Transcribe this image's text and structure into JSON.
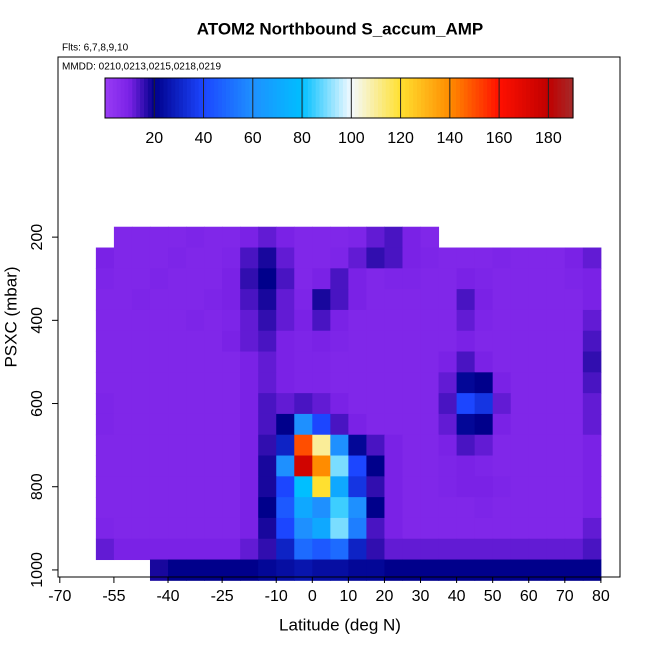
{
  "chart_data": {
    "type": "heatmap",
    "title": "ATOM2 Northbound S_accum_AMP",
    "subtitle": "Flts: 6,7,8,9,10",
    "annotation": "MMDD: 0210,0213,0215,0218,0219",
    "xlabel": "Latitude (deg N)",
    "ylabel": "PSXC (mbar)",
    "xlim": [
      -70.5,
      85.3
    ],
    "xticks": [
      -70,
      -55,
      -40,
      -25,
      -10,
      0,
      10,
      20,
      30,
      40,
      50,
      60,
      70,
      80
    ],
    "ylim": [
      1017,
      -233
    ],
    "yticks": [
      200,
      400,
      600,
      800,
      1000
    ],
    "zlim": [
      0,
      190
    ],
    "zticks": [
      20,
      40,
      60,
      80,
      100,
      120,
      140,
      160,
      180
    ],
    "color_stops": [
      0,
      10,
      20,
      40,
      60,
      80,
      100,
      120,
      140,
      160,
      180,
      190
    ],
    "colors": [
      "#9a3cf5",
      "#7a22e6",
      "#00008b",
      "#1c46ff",
      "#1e90ff",
      "#00bfff",
      "#f4faff",
      "#ffe030",
      "#ff8c00",
      "#ff1000",
      "#c00000",
      "#a52a2a"
    ],
    "x": [
      -57.5,
      -52.5,
      -47.5,
      -42.5,
      -37.5,
      -32.5,
      -27.5,
      -22.5,
      -17.5,
      -12.5,
      -7.5,
      -2.5,
      2.5,
      7.5,
      12.5,
      17.5,
      22.5,
      27.5,
      32.5,
      37.5,
      42.5,
      47.5,
      52.5,
      57.5,
      62.5,
      67.5,
      72.5,
      77.5
    ],
    "y": [
      200,
      250,
      300,
      350,
      400,
      450,
      500,
      550,
      600,
      650,
      700,
      750,
      800,
      850,
      900,
      950,
      1000
    ],
    "z": [
      [
        null,
        8,
        8,
        8,
        8,
        9,
        8,
        8,
        10,
        12,
        10,
        8,
        8,
        8,
        9,
        12,
        14,
        10,
        8,
        null,
        null,
        null,
        null,
        null,
        null,
        null,
        null,
        null
      ],
      [
        10,
        8,
        8,
        8,
        9,
        8,
        8,
        9,
        14,
        18,
        12,
        8,
        8,
        9,
        12,
        16,
        14,
        10,
        9,
        8,
        8,
        8,
        9,
        8,
        8,
        8,
        10,
        12
      ],
      [
        9,
        8,
        8,
        9,
        8,
        8,
        8,
        10,
        16,
        20,
        14,
        8,
        10,
        14,
        10,
        8,
        9,
        9,
        8,
        8,
        10,
        9,
        8,
        8,
        8,
        8,
        9,
        10
      ],
      [
        8,
        8,
        9,
        8,
        8,
        8,
        9,
        10,
        14,
        18,
        12,
        9,
        18,
        14,
        10,
        8,
        8,
        8,
        8,
        8,
        14,
        10,
        8,
        8,
        8,
        8,
        8,
        10
      ],
      [
        8,
        8,
        8,
        8,
        8,
        9,
        8,
        9,
        12,
        16,
        12,
        10,
        14,
        10,
        8,
        8,
        8,
        8,
        8,
        8,
        12,
        9,
        8,
        8,
        8,
        8,
        8,
        12
      ],
      [
        8,
        8,
        8,
        8,
        8,
        8,
        8,
        10,
        12,
        14,
        10,
        9,
        10,
        9,
        8,
        8,
        8,
        8,
        8,
        8,
        10,
        8,
        8,
        8,
        8,
        8,
        8,
        14
      ],
      [
        8,
        8,
        8,
        8,
        8,
        8,
        8,
        8,
        10,
        12,
        10,
        9,
        9,
        8,
        8,
        8,
        8,
        8,
        8,
        10,
        14,
        10,
        8,
        8,
        8,
        8,
        8,
        16
      ],
      [
        8,
        8,
        8,
        8,
        8,
        8,
        8,
        8,
        10,
        12,
        10,
        9,
        9,
        8,
        8,
        8,
        8,
        8,
        8,
        12,
        22,
        20,
        10,
        8,
        8,
        8,
        8,
        14
      ],
      [
        9,
        8,
        8,
        8,
        8,
        8,
        8,
        8,
        10,
        14,
        12,
        14,
        12,
        10,
        8,
        8,
        8,
        8,
        8,
        14,
        40,
        35,
        12,
        8,
        8,
        8,
        8,
        12
      ],
      [
        9,
        8,
        8,
        8,
        8,
        8,
        8,
        8,
        10,
        14,
        20,
        60,
        40,
        14,
        10,
        8,
        8,
        8,
        8,
        12,
        22,
        20,
        10,
        8,
        8,
        8,
        8,
        12
      ],
      [
        8,
        8,
        8,
        8,
        8,
        8,
        8,
        8,
        10,
        16,
        30,
        150,
        110,
        60,
        22,
        14,
        10,
        8,
        8,
        10,
        14,
        12,
        8,
        8,
        8,
        8,
        8,
        10
      ],
      [
        8,
        8,
        8,
        8,
        8,
        8,
        8,
        8,
        10,
        18,
        60,
        175,
        140,
        90,
        40,
        20,
        10,
        8,
        8,
        9,
        10,
        9,
        8,
        8,
        8,
        8,
        8,
        10
      ],
      [
        8,
        8,
        8,
        8,
        8,
        8,
        8,
        8,
        10,
        18,
        40,
        80,
        120,
        70,
        35,
        16,
        10,
        8,
        8,
        9,
        10,
        10,
        9,
        8,
        8,
        8,
        8,
        10
      ],
      [
        8,
        8,
        8,
        8,
        8,
        8,
        8,
        8,
        10,
        20,
        45,
        70,
        60,
        85,
        60,
        20,
        10,
        8,
        8,
        8,
        8,
        9,
        8,
        8,
        8,
        8,
        8,
        10
      ],
      [
        9,
        8,
        8,
        8,
        8,
        8,
        8,
        8,
        10,
        18,
        40,
        60,
        70,
        90,
        55,
        14,
        10,
        8,
        8,
        8,
        8,
        8,
        8,
        8,
        8,
        8,
        8,
        12
      ],
      [
        12,
        10,
        10,
        10,
        10,
        10,
        10,
        10,
        12,
        16,
        30,
        50,
        45,
        50,
        30,
        16,
        12,
        12,
        12,
        12,
        12,
        12,
        12,
        12,
        12,
        12,
        12,
        14
      ],
      [
        null,
        null,
        null,
        18,
        20,
        20,
        20,
        20,
        20,
        22,
        24,
        26,
        24,
        24,
        22,
        22,
        20,
        20,
        20,
        20,
        20,
        20,
        20,
        20,
        20,
        20,
        20,
        20
      ]
    ]
  }
}
